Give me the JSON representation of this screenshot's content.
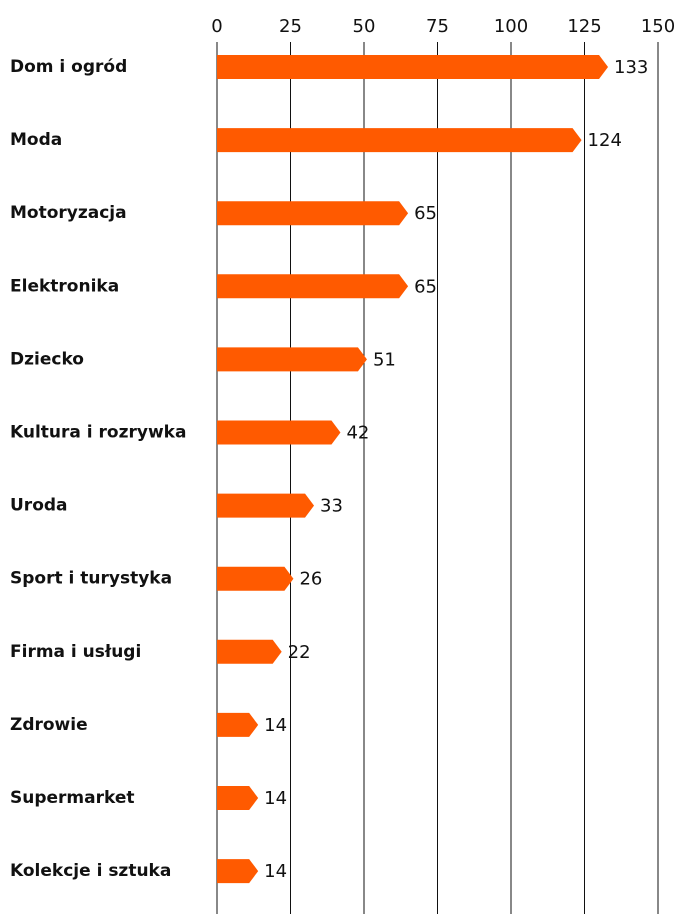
{
  "chart_data": {
    "type": "bar",
    "orientation": "horizontal",
    "categories": [
      "Dom i ogród",
      "Moda",
      "Motoryzacja",
      "Elektronika",
      "Dziecko",
      "Kultura i rozrywka",
      "Uroda",
      "Sport i turystyka",
      "Firma i usługi",
      "Zdrowie",
      "Supermarket",
      "Kolekcje i sztuka"
    ],
    "values": [
      133,
      124,
      65,
      65,
      51,
      42,
      33,
      26,
      22,
      14,
      14,
      14
    ],
    "color": "#ff5a00",
    "xlim": [
      0,
      150
    ],
    "xticks": [
      0,
      25,
      50,
      75,
      100,
      125,
      150
    ],
    "grid": true
  }
}
